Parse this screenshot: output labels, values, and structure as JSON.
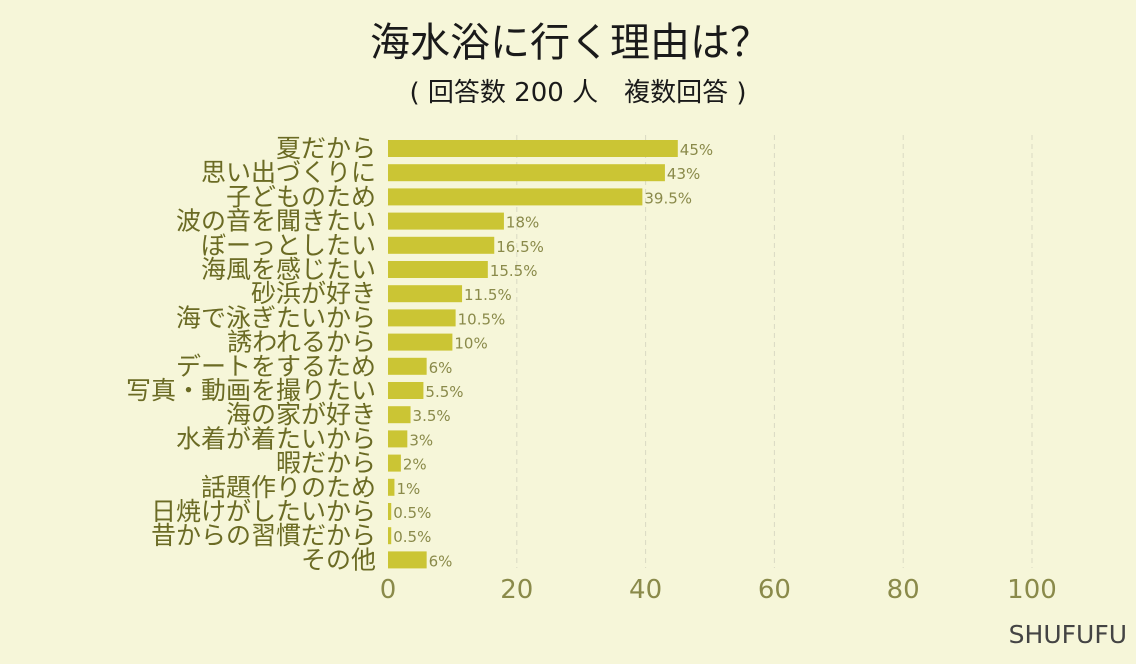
{
  "chart_data": {
    "type": "bar",
    "orientation": "horizontal",
    "title": "海水浴に行く理由は？",
    "subtitle": "( 回答数 200 人　複数回答 )",
    "categories": [
      "夏だから",
      "思い出づくりに",
      "子どものため",
      "波の音を聞きたい",
      "ぼーっとしたい",
      "海風を感じたい",
      "砂浜が好き",
      "海で泳ぎたいから",
      "誘われるから",
      "デートをするため",
      "写真・動画を撮りたい",
      "海の家が好き",
      "水着が着たいから",
      "暇だから",
      "話題作りのため",
      "日焼けがしたいから",
      "昔からの習慣だから",
      "その他"
    ],
    "values": [
      45,
      43,
      39.5,
      18,
      16.5,
      15.5,
      11.5,
      10.5,
      10,
      6,
      5.5,
      3.5,
      3,
      2,
      1,
      0.5,
      0.5,
      6
    ],
    "value_labels": [
      "45%",
      "43%",
      "39.5%",
      "18%",
      "16.5%",
      "15.5%",
      "11.5%",
      "10.5%",
      "10%",
      "6%",
      "5.5%",
      "3.5%",
      "3%",
      "2%",
      "1%",
      "0.5%",
      "0.5%",
      "6%"
    ],
    "xticks": [
      0,
      20,
      40,
      60,
      80,
      100
    ],
    "xlim": [
      0,
      100
    ],
    "grid": true,
    "bar_color": "#cbc534"
  },
  "brand": "SHUFUFU"
}
